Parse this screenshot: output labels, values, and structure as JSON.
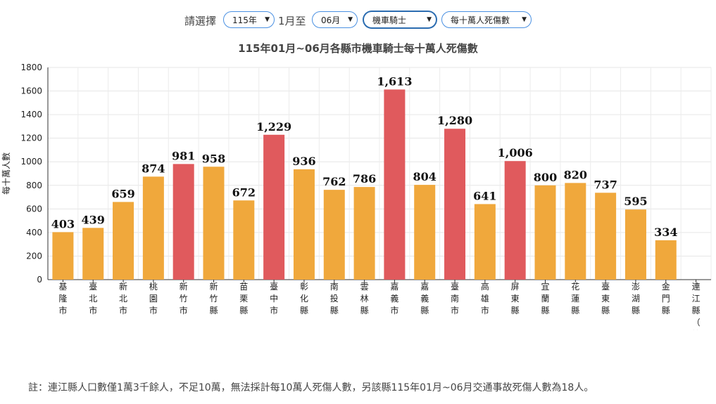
{
  "controls": {
    "prompt": "請選擇",
    "year": "115年",
    "from_month": "1月至",
    "month": "06月",
    "vehicle": "機車騎士",
    "metric": "每十萬人死傷數"
  },
  "chart_data": {
    "type": "bar",
    "title": "115年01月~06月各縣市機車騎士每十萬人死傷數",
    "ylabel": "每十萬人數",
    "ylim": [
      0,
      1800
    ],
    "yticks": [
      0,
      200,
      400,
      600,
      800,
      1000,
      1200,
      1400,
      1600,
      1800
    ],
    "grid": true,
    "categories": [
      "基隆市",
      "臺北市",
      "新北市",
      "桃園市",
      "新竹市",
      "新竹縣",
      "苗栗縣",
      "臺中市",
      "彰化縣",
      "南投縣",
      "雲林縣",
      "嘉義市",
      "嘉義縣",
      "臺南市",
      "高雄市",
      "屏東縣",
      "宜蘭縣",
      "花蓮縣",
      "臺東縣",
      "澎湖縣",
      "金門縣",
      "連江縣（註）"
    ],
    "values": [
      403,
      439,
      659,
      874,
      981,
      958,
      672,
      1229,
      936,
      762,
      786,
      1613,
      804,
      1280,
      641,
      1006,
      800,
      820,
      737,
      595,
      334,
      null
    ],
    "value_labels": [
      "403",
      "439",
      "659",
      "874",
      "981",
      "958",
      "672",
      "1,229",
      "936",
      "762",
      "786",
      "1,613",
      "804",
      "1,280",
      "641",
      "1,006",
      "800",
      "820",
      "737",
      "595",
      "334",
      ""
    ],
    "highlight": [
      false,
      false,
      false,
      false,
      true,
      false,
      false,
      true,
      false,
      false,
      false,
      true,
      false,
      true,
      false,
      true,
      false,
      false,
      false,
      false,
      false,
      false
    ],
    "colors": {
      "normal": "#F0A83C",
      "highlight": "#E05A5D"
    }
  },
  "note": "註：連江縣人口數僅1萬3千餘人，不足10萬，無法採計每10萬人死傷人數，另該縣115年01月~06月交通事故死傷人數為18人。"
}
